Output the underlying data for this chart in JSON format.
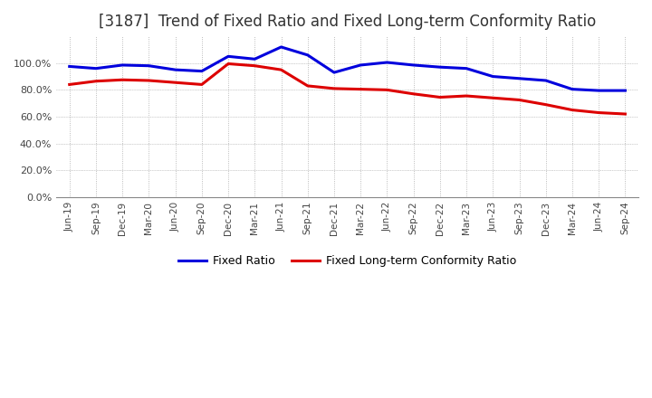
{
  "title": "[3187]  Trend of Fixed Ratio and Fixed Long-term Conformity Ratio",
  "x_labels": [
    "Jun-19",
    "Sep-19",
    "Dec-19",
    "Mar-20",
    "Jun-20",
    "Sep-20",
    "Dec-20",
    "Mar-21",
    "Jun-21",
    "Sep-21",
    "Dec-21",
    "Mar-22",
    "Jun-22",
    "Sep-22",
    "Dec-22",
    "Mar-23",
    "Jun-23",
    "Sep-23",
    "Dec-23",
    "Mar-24",
    "Jun-24",
    "Sep-24"
  ],
  "fixed_ratio": [
    97.5,
    96.0,
    98.5,
    98.0,
    95.0,
    94.0,
    105.0,
    103.0,
    112.0,
    106.0,
    93.0,
    98.5,
    100.5,
    98.5,
    97.0,
    96.0,
    90.0,
    88.5,
    87.0,
    80.5,
    79.5,
    79.5
  ],
  "fixed_lt_ratio": [
    84.0,
    86.5,
    87.5,
    87.0,
    85.5,
    84.0,
    99.5,
    98.0,
    95.0,
    83.0,
    81.0,
    80.5,
    80.0,
    77.0,
    74.5,
    75.5,
    74.0,
    72.5,
    69.0,
    65.0,
    63.0,
    62.0
  ],
  "fixed_ratio_color": "#0000dd",
  "fixed_lt_ratio_color": "#dd0000",
  "ylim": [
    0,
    120
  ],
  "yticks": [
    0,
    20,
    40,
    60,
    80,
    100
  ],
  "background_color": "#ffffff",
  "grid_color": "#aaaaaa",
  "title_fontsize": 12,
  "legend_labels": [
    "Fixed Ratio",
    "Fixed Long-term Conformity Ratio"
  ]
}
